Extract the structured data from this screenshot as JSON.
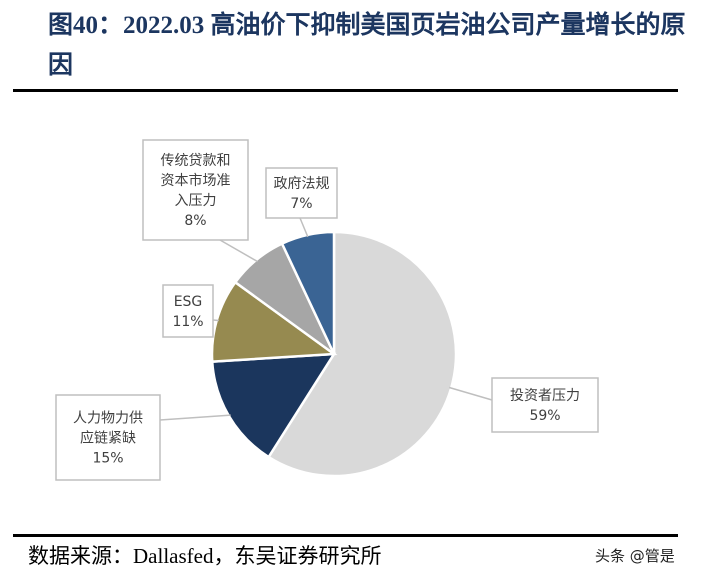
{
  "title": "图40：2022.03 高油价下抑制美国页岩油公司产量增长的原因",
  "source": "数据来源：Dallasfed，东吴证券研究所",
  "watermark": "头条 @管是",
  "chart_data": {
    "type": "pie",
    "start": "12 o'clock, clockwise",
    "slices": [
      {
        "label": "投资者压力",
        "label_lines": [
          "投资者压力"
        ],
        "value": 59,
        "pct_label": "59%",
        "color": "#d9d9d9"
      },
      {
        "label": "人力物力供应链紧缺",
        "label_lines": [
          "人力物力供",
          "应链紧缺"
        ],
        "value": 15,
        "pct_label": "15%",
        "color": "#1b365d"
      },
      {
        "label": "ESG",
        "label_lines": [
          "ESG"
        ],
        "value": 11,
        "pct_label": "11%",
        "color": "#968a50"
      },
      {
        "label": "传统贷款和资本市场准入压力",
        "label_lines": [
          "传统贷款和",
          "资本市场准",
          "入压力"
        ],
        "value": 8,
        "pct_label": "8%",
        "color": "#a6a6a6"
      },
      {
        "label": "政府法规",
        "label_lines": [
          "政府法规"
        ],
        "value": 7,
        "pct_label": "7%",
        "color": "#3a6494"
      }
    ]
  }
}
